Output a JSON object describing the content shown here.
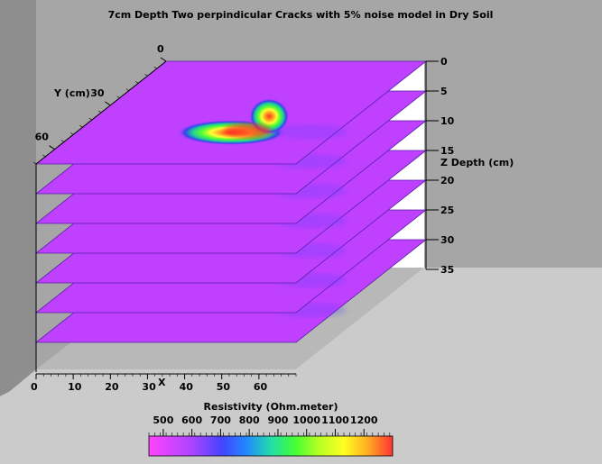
{
  "chart_data": {
    "type": "heatmap",
    "title": "7cm Depth Two perpindicular Cracks with 5% noise model in Dry Soil",
    "x_axis": {
      "label": "X",
      "ticks": [
        0,
        10,
        20,
        30,
        40,
        50,
        60
      ],
      "range": [
        0,
        70
      ]
    },
    "y_axis": {
      "label": "Y (cm)",
      "ticks": [
        0,
        30,
        60
      ],
      "range": [
        0,
        70
      ]
    },
    "z_axis": {
      "label": "Z Depth (cm)",
      "ticks": [
        0,
        5,
        10,
        15,
        20,
        25,
        30,
        35
      ],
      "range": [
        0,
        35
      ]
    },
    "slices": [
      {
        "depth": 0,
        "peak_resistivity": 1200
      },
      {
        "depth": 5,
        "peak_resistivity": 540
      },
      {
        "depth": 10,
        "peak_resistivity": 530
      },
      {
        "depth": 15,
        "peak_resistivity": 530
      },
      {
        "depth": 20,
        "peak_resistivity": 525
      },
      {
        "depth": 25,
        "peak_resistivity": 520
      },
      {
        "depth": 30,
        "peak_resistivity": 520
      }
    ],
    "background_resistivity": 520,
    "colorbar": {
      "label": "Resistivity (Ohm.meter)",
      "ticks": [
        "500",
        "600",
        "700",
        "800",
        "900",
        "1000",
        "1100",
        "1200"
      ],
      "range": [
        450,
        1300
      ],
      "colors": [
        "#ff44ff",
        "#cc44ff",
        "#7744ff",
        "#3333ee",
        "#33aaff",
        "#22dd88",
        "#66ff22",
        "#ccff22",
        "#ffff22",
        "#ffaa22",
        "#ff4422"
      ]
    },
    "background": {
      "wall": "#a6a6a6",
      "side_wall": "#8e8e8e",
      "floor": "#cbcbcb",
      "slice": "#c040ff"
    }
  }
}
